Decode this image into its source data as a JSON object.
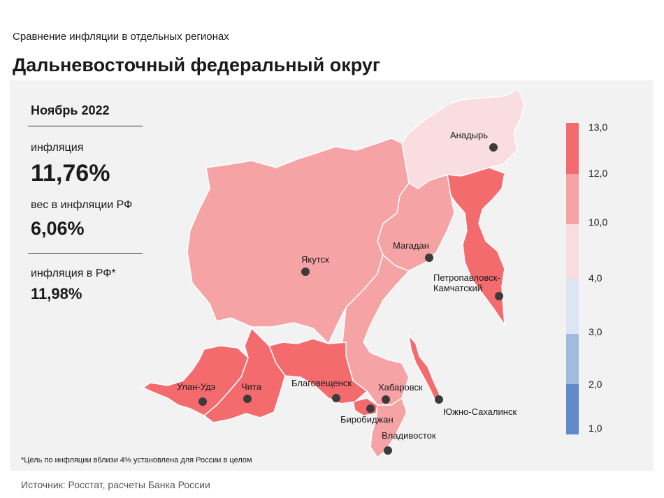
{
  "header": {
    "subtitle": "Сравнение инфляции в отдельных регионах",
    "title": "Дальневосточный федеральный округ"
  },
  "info": {
    "period": "Ноябрь 2022",
    "inflation_label": "инфляция",
    "inflation_value": "11,76%",
    "weight_label": "вес в инфляции РФ",
    "weight_value": "6,06%",
    "rf_label": "инфляция в РФ*",
    "rf_value": "11,98%"
  },
  "footnote": "*Цель по инфляции вблизи 4% установлена для России в целом",
  "source": "Источник: Росстат, расчеты Банка России",
  "legend": {
    "ticks": [
      "13,0",
      "12,0",
      "10,0",
      "4,0",
      "3,0",
      "2,0",
      "1,0"
    ],
    "colors": [
      "#f46b6e",
      "#f5a3a5",
      "#f9dde0",
      "#dbe5f3",
      "#a0bbe0",
      "#5f8cc8"
    ]
  },
  "colors": {
    "high": "#f46b6e",
    "mid": "#f5a3a5",
    "low": "#f9dde0",
    "panel": "#f2f2f2",
    "city_dot": "#3b3b3b"
  },
  "cities": {
    "anadyr": "Анадырь",
    "yakutsk": "Якутск",
    "magadan": "Магадан",
    "petropavlovsk": "Петропавловск-\nКамчатский",
    "petropavlovsk_l1": "Петропавловск-",
    "petropavlovsk_l2": "Камчатский",
    "ulan_ude": "Улан-Удэ",
    "chita": "Чита",
    "blagoveshchensk": "Благовещенск",
    "khabarovsk": "Хабаровск",
    "birobidzhan": "Биробиджан",
    "vladivostok": "Владивосток",
    "yuzhno": "Южно-Сахалинск"
  }
}
